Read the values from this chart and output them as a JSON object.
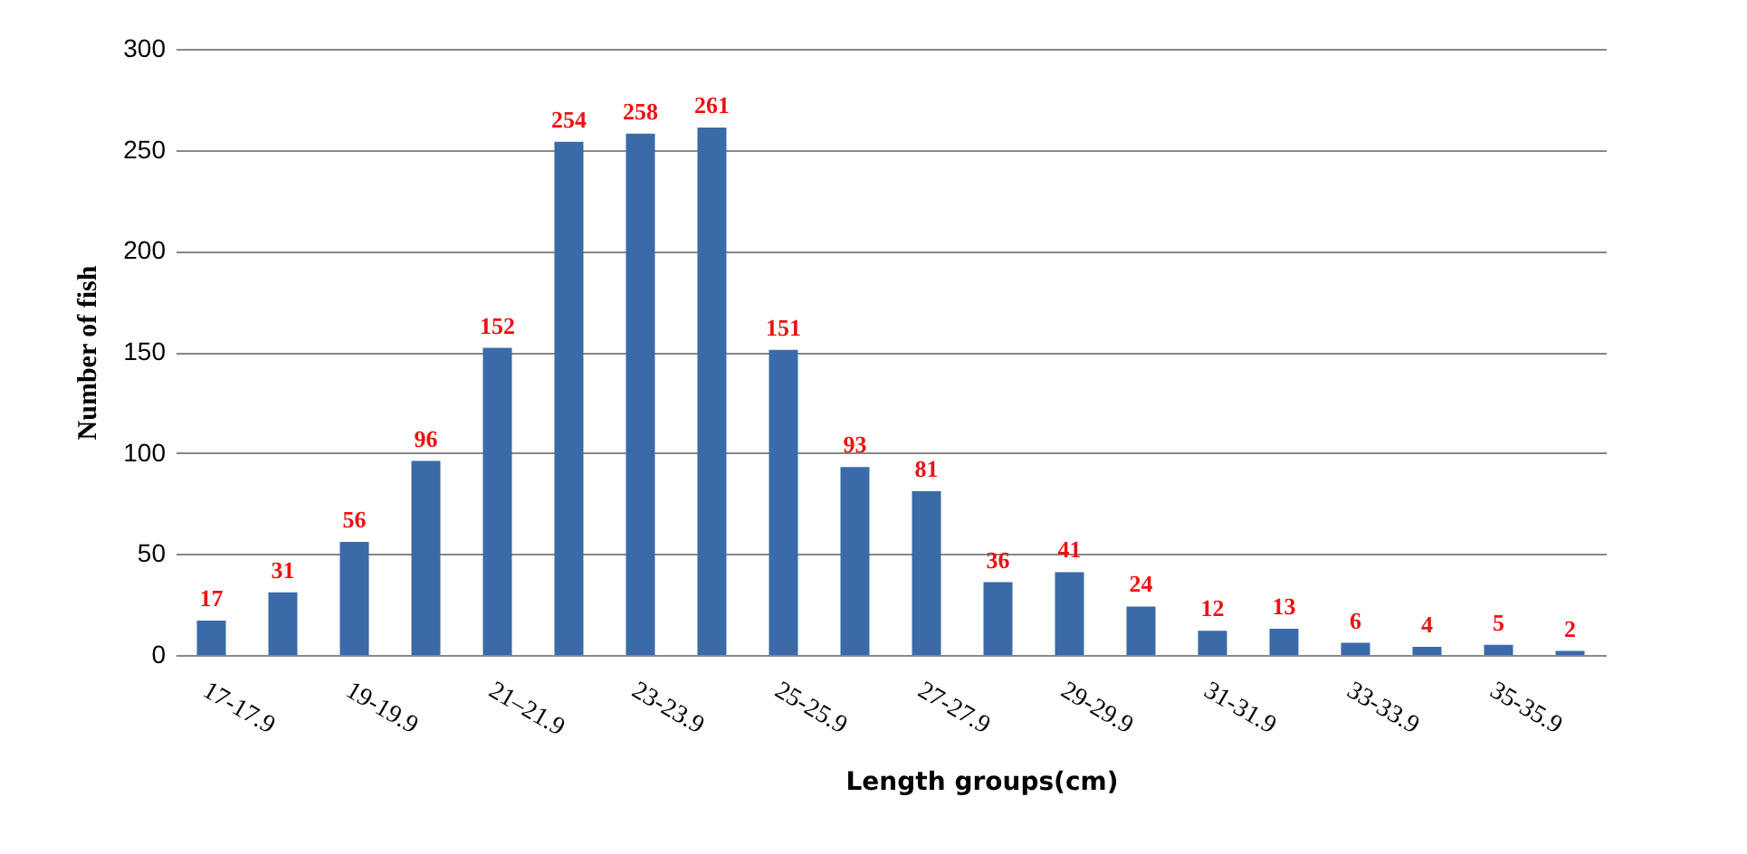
{
  "chart_data": {
    "type": "bar",
    "xlabel": "Length groups(cm)",
    "ylabel": "Number of fish",
    "categories": [
      "17-17.9",
      null,
      "19-19.9",
      null,
      "21–21.9",
      null,
      "23-23.9",
      null,
      "25-25.9",
      null,
      "27-27.9",
      null,
      "29-29.9",
      null,
      "31-31.9",
      null,
      "33-33.9",
      null,
      "35-35.9",
      null
    ],
    "values": [
      17,
      31,
      56,
      96,
      152,
      254,
      258,
      261,
      151,
      93,
      81,
      36,
      41,
      24,
      12,
      13,
      6,
      4,
      5,
      2
    ],
    "color": "#3a6aa8",
    "ylim": [
      0,
      300
    ],
    "yticks": [
      0,
      50,
      100,
      150,
      200,
      250,
      300
    ],
    "grid": "y",
    "data_labels": true
  }
}
